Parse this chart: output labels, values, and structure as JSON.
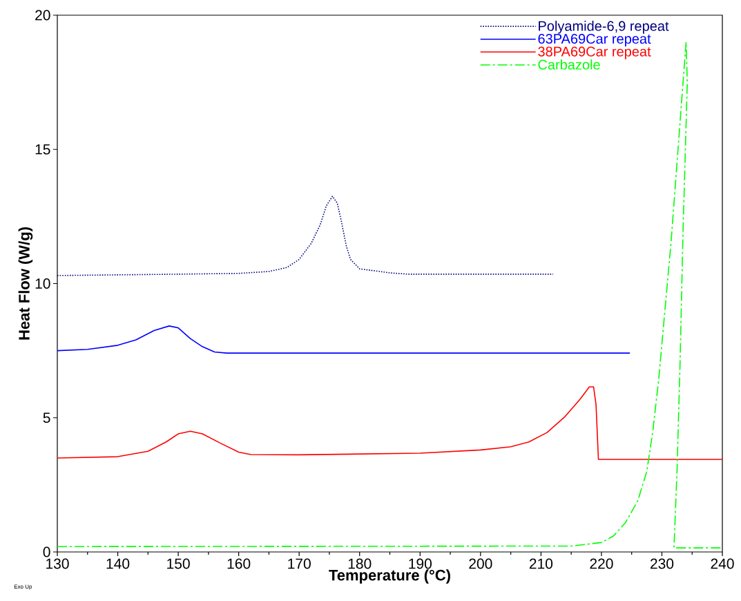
{
  "chart_data": {
    "type": "line",
    "xlabel": "Temperature (°C)",
    "ylabel": "Heat Flow (W/g)",
    "annotations": [
      "Exo Up"
    ],
    "xlim": [
      130,
      240
    ],
    "ylim": [
      0,
      20
    ],
    "xticks": [
      130,
      140,
      150,
      160,
      170,
      180,
      190,
      200,
      210,
      220,
      230,
      240
    ],
    "yticks": [
      0,
      5,
      10,
      15,
      20
    ],
    "grid": false,
    "legend": "top right",
    "marker": "none",
    "series": [
      {
        "name": "Polyamide-6,9 repeat",
        "color": "#000080",
        "line_style": "dotted",
        "x": [
          130,
          150,
          160,
          165,
          168,
          170,
          172,
          173.5,
          174.5,
          175.5,
          176.3,
          177,
          177.8,
          178.5,
          180,
          185,
          188,
          212
        ],
        "values": [
          10.3,
          10.35,
          10.38,
          10.45,
          10.6,
          10.9,
          11.5,
          12.2,
          12.9,
          13.25,
          13.0,
          12.3,
          11.4,
          10.9,
          10.55,
          10.4,
          10.35,
          10.35
        ]
      },
      {
        "name": "63PA69Car repeat",
        "color": "#0000ff",
        "line_style": "solid",
        "x": [
          130,
          135,
          140,
          143,
          146,
          148.5,
          150,
          152,
          154,
          156,
          158,
          224.7
        ],
        "values": [
          7.5,
          7.55,
          7.7,
          7.9,
          8.25,
          8.42,
          8.35,
          7.95,
          7.65,
          7.45,
          7.41,
          7.41
        ]
      },
      {
        "name": "38PA69Car repeat",
        "color": "#ff0000",
        "line_style": "solid",
        "x": [
          130,
          140,
          145,
          148,
          150,
          152,
          154,
          157,
          160,
          162,
          170,
          190,
          200,
          205,
          208,
          211,
          214,
          216.5,
          218,
          218.7,
          219.1,
          219.5,
          240
        ],
        "values": [
          3.5,
          3.55,
          3.75,
          4.1,
          4.4,
          4.5,
          4.4,
          4.05,
          3.72,
          3.63,
          3.62,
          3.68,
          3.8,
          3.92,
          4.1,
          4.45,
          5.05,
          5.7,
          6.15,
          6.15,
          5.5,
          3.45,
          3.45
        ]
      },
      {
        "name": "Carbazole",
        "color": "#00ff00",
        "line_style": "dashed",
        "x": [
          130,
          215,
          220,
          222,
          224,
          226,
          227.5,
          228.5,
          229.5,
          230.5,
          231.5,
          232.5,
          233.5,
          234,
          234.2,
          233.5,
          233,
          232.5,
          232,
          240
        ],
        "values": [
          0.2,
          0.22,
          0.35,
          0.6,
          1.1,
          1.9,
          3.0,
          4.5,
          6.5,
          9.0,
          11.5,
          14.5,
          17.5,
          19.0,
          17.5,
          12,
          7,
          3,
          0.15,
          0.15
        ]
      }
    ]
  }
}
